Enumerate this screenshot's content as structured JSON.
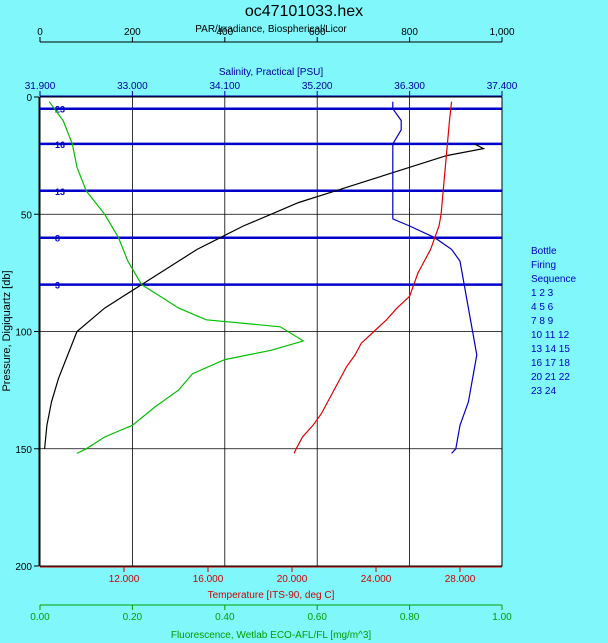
{
  "chart_data": {
    "type": "line",
    "title": "oc47101033.hex",
    "y_axis": {
      "label": "Pressure, Digiquartz [db]",
      "range": [
        0,
        200
      ],
      "inverted": true,
      "ticks": [
        "0",
        "50",
        "100",
        "150",
        "200"
      ]
    },
    "x_axes": [
      {
        "id": "par",
        "label": "PAR/Irradiance, Biospherical/Licor",
        "position": "top-outer",
        "range": [
          0,
          1000
        ],
        "ticks": [
          "0",
          "200",
          "400",
          "600",
          "800",
          "1,000"
        ],
        "color": "#000000"
      },
      {
        "id": "salinity",
        "label": "Salinity, Practical [PSU]",
        "position": "top-inner",
        "range": [
          31.9,
          37.4
        ],
        "ticks": [
          "31.900",
          "33.000",
          "34.100",
          "35.200",
          "36.300",
          "37.400"
        ],
        "color": "#0000a0"
      },
      {
        "id": "temperature",
        "label": "Temperature [ITS-90, deg C]",
        "position": "bottom-inner",
        "range": [
          8,
          30
        ],
        "ticks": [
          "12.000",
          "16.000",
          "20.000",
          "24.000",
          "28.000"
        ],
        "color": "#d00000"
      },
      {
        "id": "fluorescence",
        "label": "Fluorescence, Wetlab ECO-AFL/FL [mg/m^3]",
        "position": "bottom-outer",
        "range": [
          0,
          1
        ],
        "ticks": [
          "0.00",
          "0.20",
          "0.40",
          "0.60",
          "0.80",
          "1.00"
        ],
        "color": "#00c000"
      }
    ],
    "grid": true,
    "series": [
      {
        "axis": "par",
        "color": "#000000",
        "points": [
          [
            940,
            20
          ],
          [
            960,
            22
          ],
          [
            880,
            25
          ],
          [
            800,
            30
          ],
          [
            720,
            35
          ],
          [
            640,
            40
          ],
          [
            560,
            45
          ],
          [
            500,
            50
          ],
          [
            440,
            55
          ],
          [
            390,
            60
          ],
          [
            340,
            65
          ],
          [
            300,
            70
          ],
          [
            260,
            75
          ],
          [
            220,
            80
          ],
          [
            180,
            85
          ],
          [
            140,
            90
          ],
          [
            110,
            95
          ],
          [
            80,
            100
          ],
          [
            60,
            110
          ],
          [
            40,
            120
          ],
          [
            25,
            130
          ],
          [
            15,
            140
          ],
          [
            10,
            150
          ]
        ]
      },
      {
        "axis": "salinity",
        "color": "#0000c0",
        "points": [
          [
            36.1,
            2
          ],
          [
            36.1,
            5
          ],
          [
            36.2,
            10
          ],
          [
            36.2,
            14
          ],
          [
            36.1,
            20
          ],
          [
            36.1,
            30
          ],
          [
            36.1,
            45
          ],
          [
            36.1,
            50
          ],
          [
            36.1,
            52
          ],
          [
            36.3,
            55
          ],
          [
            36.6,
            60
          ],
          [
            36.8,
            65
          ],
          [
            36.9,
            70
          ],
          [
            36.95,
            80
          ],
          [
            37.0,
            90
          ],
          [
            37.05,
            100
          ],
          [
            37.1,
            110
          ],
          [
            37.05,
            120
          ],
          [
            37.0,
            130
          ],
          [
            36.9,
            140
          ],
          [
            36.85,
            150
          ],
          [
            36.8,
            152
          ]
        ]
      },
      {
        "axis": "temperature",
        "color": "#e00000",
        "points": [
          [
            27.6,
            2
          ],
          [
            27.5,
            10
          ],
          [
            27.4,
            20
          ],
          [
            27.3,
            30
          ],
          [
            27.2,
            40
          ],
          [
            27.1,
            50
          ],
          [
            27.0,
            55
          ],
          [
            26.8,
            60
          ],
          [
            26.6,
            65
          ],
          [
            26.3,
            70
          ],
          [
            26.0,
            75
          ],
          [
            25.8,
            80
          ],
          [
            25.6,
            85
          ],
          [
            25.0,
            90
          ],
          [
            24.5,
            95
          ],
          [
            23.9,
            100
          ],
          [
            23.3,
            105
          ],
          [
            23.0,
            110
          ],
          [
            22.6,
            115
          ],
          [
            22.3,
            120
          ],
          [
            22.0,
            125
          ],
          [
            21.7,
            130
          ],
          [
            21.4,
            135
          ],
          [
            21.0,
            140
          ],
          [
            20.5,
            145
          ],
          [
            20.2,
            150
          ],
          [
            20.1,
            152
          ]
        ]
      },
      {
        "axis": "fluorescence",
        "color": "#00c000",
        "points": [
          [
            0.02,
            2
          ],
          [
            0.05,
            10
          ],
          [
            0.07,
            20
          ],
          [
            0.08,
            30
          ],
          [
            0.1,
            40
          ],
          [
            0.14,
            50
          ],
          [
            0.17,
            60
          ],
          [
            0.19,
            70
          ],
          [
            0.22,
            80
          ],
          [
            0.26,
            85
          ],
          [
            0.3,
            90
          ],
          [
            0.36,
            95
          ],
          [
            0.52,
            98
          ],
          [
            0.57,
            104
          ],
          [
            0.5,
            108
          ],
          [
            0.4,
            112
          ],
          [
            0.33,
            118
          ],
          [
            0.3,
            125
          ],
          [
            0.25,
            132
          ],
          [
            0.2,
            140
          ],
          [
            0.14,
            145
          ],
          [
            0.1,
            150
          ],
          [
            0.08,
            152
          ]
        ]
      }
    ],
    "bottle_lines": [
      {
        "label": "23",
        "pressure": 5
      },
      {
        "label": "16",
        "pressure": 20
      },
      {
        "label": "13",
        "pressure": 40
      },
      {
        "label": "8",
        "pressure": 60
      },
      {
        "label": "3",
        "pressure": 80
      }
    ],
    "legend": {
      "position": "right",
      "lines": [
        "Bottle",
        "Firing",
        "Sequence",
        "1  2  3",
        "4  5  6",
        "7  8  9",
        "10 11 12",
        "13 14 15",
        "16 17 18",
        "20 21 22",
        "23 24"
      ]
    }
  }
}
